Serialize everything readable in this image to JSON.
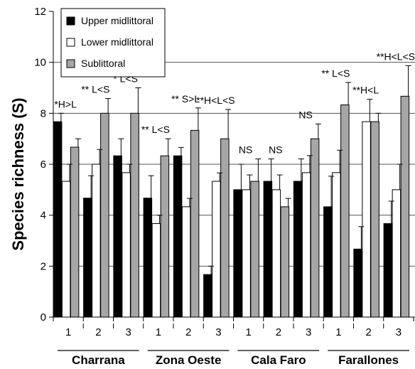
{
  "chart_data": {
    "type": "bar",
    "ylabel": "Species richness (S)",
    "ylim": [
      0,
      12
    ],
    "yticks": [
      "0",
      "2",
      "4",
      "6",
      "8",
      "10",
      "12"
    ],
    "grid": "horizontal",
    "legend_position": "top-left",
    "groups": [
      {
        "site": "Charrana",
        "levels": [
          "1",
          "2",
          "3"
        ]
      },
      {
        "site": "Zona Oeste",
        "levels": [
          "1",
          "2",
          "3"
        ]
      },
      {
        "site": "Cala Faro",
        "levels": [
          "1",
          "2",
          "3"
        ]
      },
      {
        "site": "Farallones",
        "levels": [
          "1",
          "2",
          "3"
        ]
      }
    ],
    "series": [
      {
        "name": "Upper midlittoral",
        "color": "#000000",
        "values": [
          7.67,
          4.67,
          6.33,
          4.67,
          6.33,
          1.67,
          5.0,
          5.33,
          5.33,
          4.33,
          2.67,
          3.67
        ],
        "errors": [
          0.33,
          0.88,
          0.67,
          0.88,
          0.33,
          0.33,
          1.0,
          0.88,
          0.88,
          1.2,
          0.88,
          0.88
        ]
      },
      {
        "name": "Lower midlittoral",
        "color": "#ffffff",
        "values": [
          5.33,
          6.0,
          5.67,
          3.67,
          4.33,
          5.33,
          5.0,
          5.0,
          5.67,
          5.67,
          7.67,
          5.0
        ],
        "errors": [
          0.67,
          0.58,
          0.33,
          0.33,
          0.33,
          0.33,
          0.58,
          0.58,
          0.67,
          0.88,
          0.88,
          1.0
        ]
      },
      {
        "name": "Sublittoral",
        "color": "#a6a6a6",
        "values": [
          6.67,
          8.0,
          8.0,
          6.33,
          7.33,
          7.0,
          5.33,
          4.33,
          7.0,
          8.33,
          7.67,
          8.67
        ],
        "errors": [
          0.33,
          0.58,
          1.0,
          0.67,
          0.88,
          1.15,
          0.88,
          0.33,
          0.58,
          0.88,
          0.33,
          1.2
        ]
      }
    ],
    "annotations": [
      {
        "text": "*H>L",
        "group": 0,
        "level": 0
      },
      {
        "text": "** L<S",
        "group": 0,
        "level": 1
      },
      {
        "text": "* L<S",
        "group": 0,
        "level": 2
      },
      {
        "text": "** L<S",
        "group": 1,
        "level": 0
      },
      {
        "text": "**  S>L",
        "group": 1,
        "level": 1
      },
      {
        "text": "**H<L<S",
        "group": 1,
        "level": 2
      },
      {
        "text": "NS",
        "group": 2,
        "level": 0
      },
      {
        "text": "NS",
        "group": 2,
        "level": 1
      },
      {
        "text": "NS",
        "group": 2,
        "level": 2
      },
      {
        "text": "** L<S",
        "group": 3,
        "level": 0
      },
      {
        "text": "**H<L",
        "group": 3,
        "level": 1
      },
      {
        "text": "**H<L<S",
        "group": 3,
        "level": 2
      }
    ]
  }
}
